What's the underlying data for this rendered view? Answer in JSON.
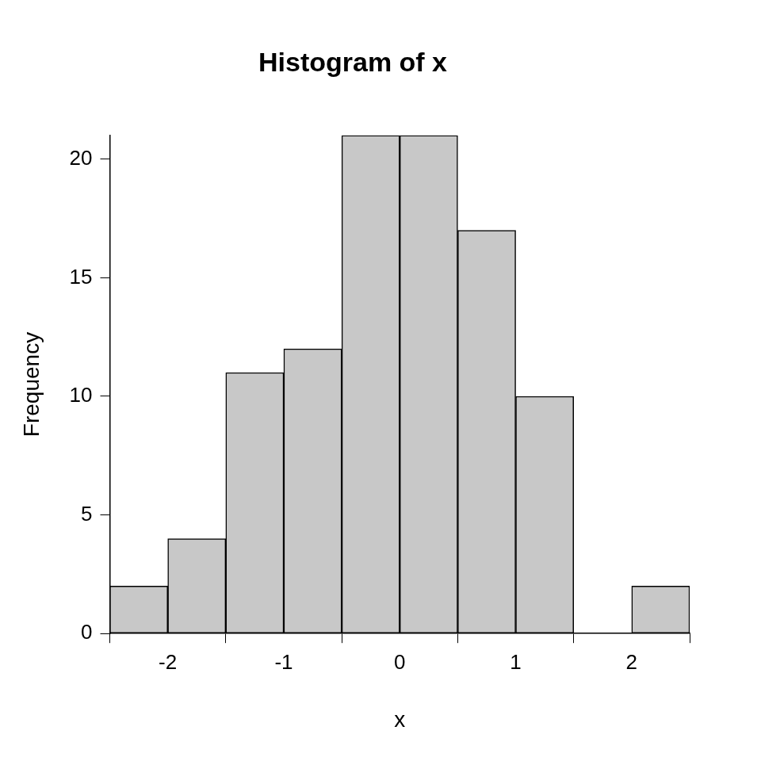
{
  "chart_data": {
    "type": "histogram",
    "title": "Histogram of x",
    "x_label": "x",
    "y_label": "Frequency",
    "bins": [
      -2.5,
      -2,
      -1.5,
      -1,
      -0.5,
      0,
      0.5,
      1,
      1.5,
      2,
      2.5
    ],
    "values": [
      2,
      4,
      11,
      12,
      21,
      21,
      17,
      10,
      0,
      2
    ],
    "color": "#c8c8c8",
    "xlim": [
      -2.5,
      2.5
    ],
    "xticks": [
      -2,
      -1,
      0,
      1,
      2
    ],
    "ylim": [
      0,
      21
    ],
    "yticks": [
      0,
      5,
      10,
      15,
      20
    ],
    "grid": false
  }
}
